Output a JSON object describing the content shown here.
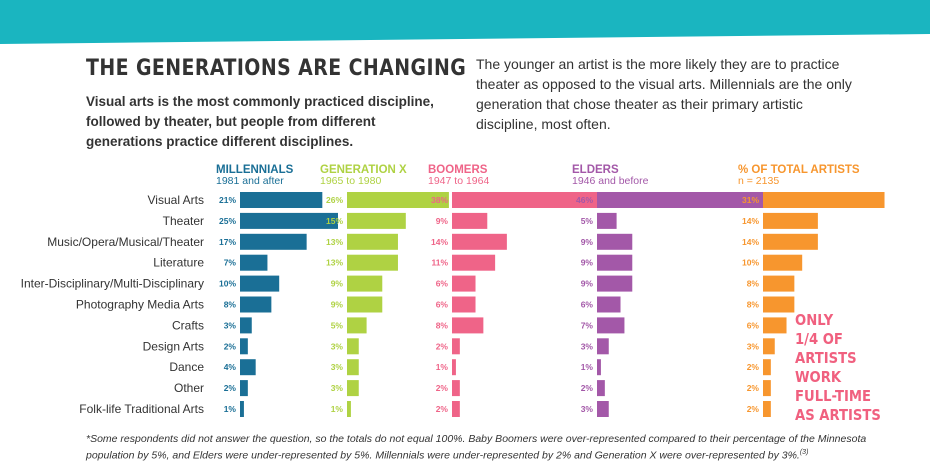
{
  "header": {
    "title": "THE GENERATIONS ARE CHANGING",
    "subtitle": "Visual arts is the most commonly practiced discipline, followed by theater, but people from different generations practice different disciplines.",
    "intro": "The younger an artist is the more likely they are to practice theater as opposed to the visual arts. Millennials are the only generation that chose theater as their primary artistic discipline, most often.",
    "band_color": "#1ab5c0"
  },
  "callout": {
    "lines": [
      "ONLY",
      "1/4 OF",
      "ARTISTS",
      "WORK",
      "FULL-TIME",
      "AS ARTISTS"
    ],
    "color": "#f0607f"
  },
  "footnote": "*Some respondents did not answer the question, so the totals do not equal 100%. Baby Boomers were over-represented compared to their percentage of the Minnesota population by 5%, and Elders were under-represented by 5%. Millennials were under-represented by 2% and Generation X were over-represented by 3%.",
  "footnote_ref": "(3)",
  "chart_data": {
    "type": "bar",
    "orientation": "horizontal",
    "categories": [
      "Visual Arts",
      "Theater",
      "Music/Opera/Musical/Theater",
      "Literature",
      "Inter-Disciplinary/Multi-Disciplinary",
      "Photography Media Arts",
      "Crafts",
      "Design Arts",
      "Dance",
      "Other",
      "Folk-life Traditional Arts"
    ],
    "series": [
      {
        "name": "MILLENNIALS",
        "sub": "1981 and after",
        "color": "#1a6f96",
        "values": [
          21,
          25,
          17,
          7,
          10,
          8,
          3,
          2,
          4,
          2,
          1
        ]
      },
      {
        "name": "GENERATION X",
        "sub": "1965 to 1980",
        "color": "#afd243",
        "values": [
          26,
          15,
          13,
          13,
          9,
          9,
          5,
          3,
          3,
          3,
          1
        ]
      },
      {
        "name": "BOOMERS",
        "sub": "1947 to 1964",
        "color": "#ef6488",
        "values": [
          38,
          9,
          14,
          11,
          6,
          6,
          8,
          2,
          1,
          2,
          2
        ]
      },
      {
        "name": "ELDERS",
        "sub": "1946 and before",
        "color": "#a358a8",
        "values": [
          46,
          5,
          9,
          9,
          9,
          6,
          7,
          3,
          1,
          2,
          3
        ]
      },
      {
        "name": "% OF TOTAL ARTISTS",
        "sub": "n = 2135",
        "color": "#f7962e",
        "values": [
          31,
          14,
          14,
          10,
          8,
          8,
          6,
          3,
          2,
          2,
          2
        ]
      }
    ],
    "value_suffix": "%"
  }
}
